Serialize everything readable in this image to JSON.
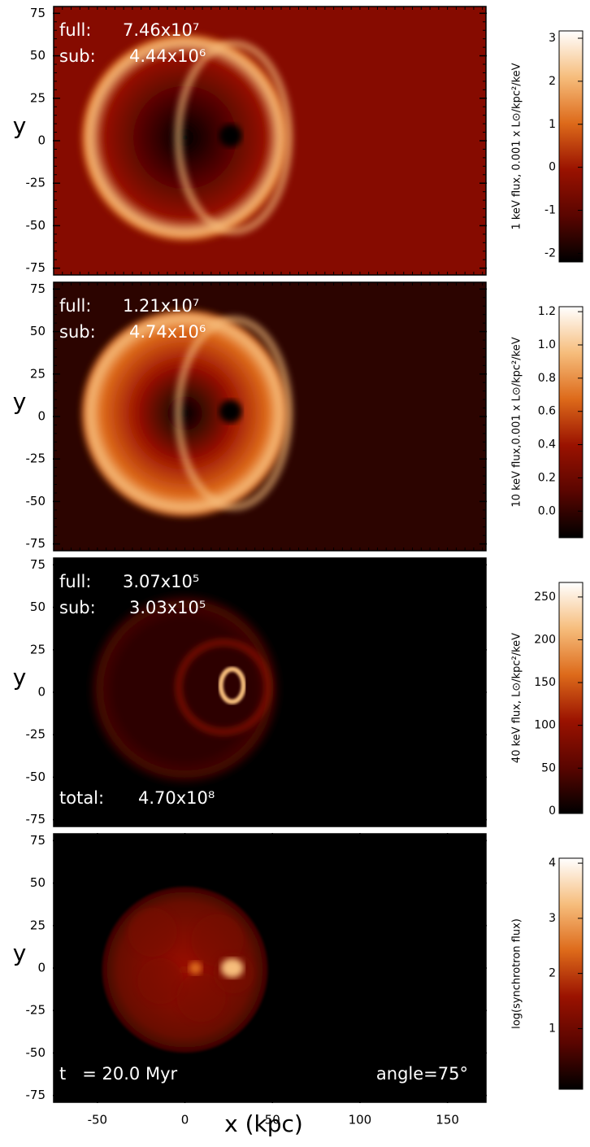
{
  "chart_data": [
    {
      "type": "heatmap",
      "xlim": [
        -75,
        172
      ],
      "ylim": [
        -79,
        79
      ],
      "yticks": [
        -75,
        -50,
        -25,
        0,
        25,
        50,
        75
      ],
      "ylabel": "y",
      "annotations": [
        {
          "corner": "top-left",
          "label": "full:",
          "value": "7.46x10⁷"
        },
        {
          "corner": "top-left",
          "label": "sub:",
          "value": "4.44x10⁶"
        }
      ],
      "colorbar": {
        "label": "1 keV flux, 0.001 x L⊙/kpc²/keV",
        "lim": [
          -2.2,
          3.17
        ],
        "ticks": [
          -2,
          -1,
          0,
          1,
          2,
          3
        ],
        "colormap": [
          "#000000",
          "#5a0500",
          "#9a1200",
          "#dd6a1a",
          "#f6bd7c",
          "#ffffff"
        ]
      }
    },
    {
      "type": "heatmap",
      "xlim": [
        -75,
        172
      ],
      "ylim": [
        -79,
        79
      ],
      "yticks": [
        -75,
        -50,
        -25,
        0,
        25,
        50,
        75
      ],
      "ylabel": "y",
      "annotations": [
        {
          "corner": "top-left",
          "label": "full:",
          "value": "1.21x10⁷"
        },
        {
          "corner": "top-left",
          "label": "sub:",
          "value": "4.74x10⁶"
        }
      ],
      "colorbar": {
        "label": "10 keV flux,0.001 x L⊙/kpc²/keV",
        "lim": [
          -0.16,
          1.23
        ],
        "ticks": [
          {
            "value": 0,
            "label": "0.0"
          },
          0.2,
          0.4,
          0.6,
          0.8,
          {
            "value": 1,
            "label": "1.0"
          },
          1.2
        ],
        "colormap": [
          "#000000",
          "#5a0500",
          "#9a1200",
          "#dd6a1a",
          "#f6bd7c",
          "#ffffff"
        ]
      }
    },
    {
      "type": "heatmap",
      "xlim": [
        -75,
        172
      ],
      "ylim": [
        -79,
        79
      ],
      "yticks": [
        -75,
        -50,
        -25,
        0,
        25,
        50,
        75
      ],
      "ylabel": "y",
      "annotations": [
        {
          "corner": "top-left",
          "label": "full:",
          "value": "3.07x10⁵"
        },
        {
          "corner": "top-left",
          "label": "sub:",
          "value": "3.03x10⁵"
        },
        {
          "corner": "bottom-left",
          "label": "total:",
          "value": "4.70x10⁸"
        }
      ],
      "colorbar": {
        "label": "40 keV flux, L⊙/kpc²/keV",
        "lim": [
          -3,
          267
        ],
        "ticks": [
          0,
          50,
          100,
          150,
          200,
          250
        ],
        "colormap": [
          "#000000",
          "#5a0500",
          "#9a1200",
          "#dd6a1a",
          "#f6bd7c",
          "#ffffff"
        ]
      }
    },
    {
      "type": "heatmap",
      "xlim": [
        -75,
        172
      ],
      "ylim": [
        -79,
        79
      ],
      "yticks": [
        -75,
        -50,
        -25,
        0,
        25,
        50,
        75
      ],
      "ylabel": "y",
      "xticks": [
        -50,
        0,
        50,
        100,
        150
      ],
      "xlabel": "x (kpc)",
      "annotations": [
        {
          "corner": "bottom-left",
          "label": "t   = 20.0 Myr"
        },
        {
          "corner": "bottom-right",
          "label": "angle=75°"
        }
      ],
      "colorbar": {
        "label": "log(synchrotron flux)",
        "lim": [
          -0.1,
          4.09
        ],
        "ticks": [
          1,
          2,
          3,
          4
        ],
        "colormap": [
          "#000000",
          "#5a0500",
          "#9a1200",
          "#dd6a1a",
          "#f6bd7c",
          "#ffffff"
        ]
      }
    }
  ]
}
